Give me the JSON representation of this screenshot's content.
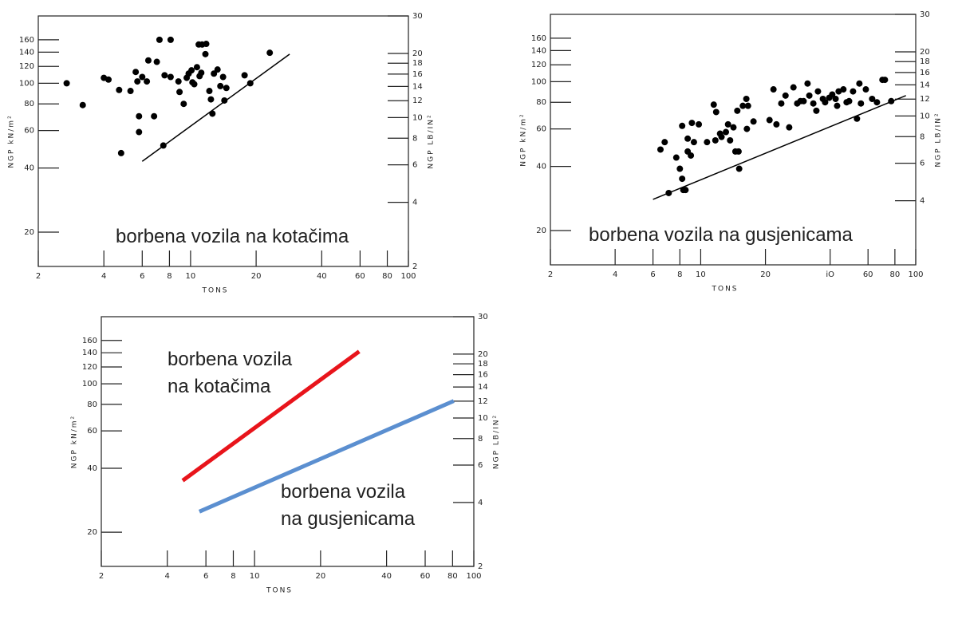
{
  "chart_data": [
    {
      "type": "scatter",
      "annotations": [
        {
          "lines": [
            "borbena vozila na kotačima"
          ],
          "color": "#e8141b"
        }
      ],
      "x_label": "TONS",
      "y_label": "NGP kN/m²",
      "y2_label": "NGP LB/IN²",
      "log_x": true,
      "log_y": true,
      "xlim": [
        2,
        100
      ],
      "xticks": [
        2,
        4,
        6,
        8,
        10,
        20,
        40,
        60,
        80,
        100
      ],
      "ylim": [
        13.8,
        207
      ],
      "yticks": [
        20,
        40,
        60,
        80,
        100,
        120,
        140,
        160
      ],
      "y2lim": [
        2,
        30
      ],
      "y2ticks": [
        2,
        4,
        6,
        8,
        10,
        12,
        14,
        16,
        18,
        20,
        30
      ],
      "series": [
        {
          "color": "#000000",
          "x": [
            2.7,
            3.2,
            4.0,
            4.2,
            4.8,
            4.7,
            5.3,
            5.6,
            5.7,
            6.0,
            5.8,
            5.8,
            6.3,
            6.4,
            6.8,
            7.0,
            7.2,
            7.6,
            7.5,
            8.1,
            8.1,
            8.8,
            8.9,
            9.3,
            9.6,
            9.8,
            10.1,
            10.2,
            10.4,
            10.7,
            11.0,
            11.2,
            10.9,
            11.3,
            11.7,
            11.8,
            12.2,
            12.4,
            12.6,
            12.8,
            13.3,
            14.1,
            14.3,
            13.7,
            14.6,
            17.7,
            18.8,
            23.1
          ],
          "values": [
            100,
            79,
            106,
            104,
            47,
            93,
            92,
            113,
            102,
            107,
            70,
            59,
            102,
            128,
            70,
            126,
            160,
            109,
            51,
            160,
            107,
            102,
            91,
            80,
            106,
            111,
            115,
            101,
            99,
            119,
            108,
            112,
            152,
            152,
            137,
            153,
            92,
            84,
            72,
            111,
            116,
            107,
            83,
            97,
            95,
            109,
            100,
            139
          ]
        }
      ],
      "lines": [
        {
          "color": "#000000",
          "x": [
            6,
            28.5
          ],
          "values": [
            43,
            137
          ]
        }
      ]
    },
    {
      "type": "scatter",
      "annotations": [
        {
          "lines": [
            "borbena vozila na gusjenicama"
          ],
          "color": "#5b8fd0"
        }
      ],
      "x_label": "TONS",
      "y_label": "NGP kN/m²",
      "y2_label": "NGP LB/IN²",
      "log_x": true,
      "log_y": true,
      "xlim": [
        2,
        100
      ],
      "xticks": [
        2,
        4,
        6,
        8,
        10,
        20,
        {
          "value": 40,
          "label": "iO"
        },
        60,
        80,
        100
      ],
      "ylim": [
        13.8,
        207
      ],
      "yticks": [
        20,
        40,
        60,
        80,
        100,
        120,
        140,
        160
      ],
      "y2lim": [
        2,
        30
      ],
      "y2ticks": [
        4,
        6,
        8,
        10,
        12,
        14,
        16,
        18,
        20,
        30
      ],
      "series": [
        {
          "color": "#000000",
          "x": [
            6.5,
            6.8,
            7.1,
            7.7,
            8.0,
            8.2,
            8.3,
            8.5,
            8.2,
            8.7,
            8.7,
            9.0,
            9.1,
            9.8,
            9.3,
            10.7,
            11.7,
            11.5,
            11.8,
            12.3,
            12.5,
            13.1,
            13.4,
            13.7,
            14.2,
            14.5,
            15.0,
            15.1,
            14.8,
            15.7,
            16.3,
            16.6,
            17.6,
            16.4,
            20.9,
            21.8,
            22.5,
            23.7,
            24.8,
            25.8,
            27.0,
            28.1,
            29.1,
            30.1,
            31.4,
            32.0,
            33.4,
            34.5,
            35.1,
            37.0,
            37.9,
            39.6,
            40.9,
            42.4,
            43.8,
            46.1,
            49.0,
            51.1,
            54.7,
            55.6,
            58.6,
            62.7,
            66.0,
            70.0,
            71.9,
            76.9,
            47.7,
            43.1,
            53.3
          ],
          "values": [
            48,
            52,
            30,
            44,
            39,
            35,
            31,
            31,
            62,
            54,
            47,
            45,
            64,
            63,
            52,
            52,
            53,
            78,
            72,
            57,
            55,
            58,
            63,
            53,
            61,
            47,
            47,
            39,
            73,
            77,
            83,
            77,
            65,
            60,
            66,
            92,
            63,
            79,
            86,
            61,
            94,
            79,
            81,
            81,
            98,
            86,
            79,
            73,
            90,
            83,
            80,
            84,
            87,
            83,
            90,
            92,
            81,
            90,
            98,
            79,
            92,
            83,
            80,
            102,
            102,
            81,
            80,
            77,
            67
          ]
        }
      ],
      "lines": [
        {
          "color": "#000000",
          "x": [
            6,
            90
          ],
          "values": [
            28,
            86
          ]
        }
      ]
    },
    {
      "type": "line",
      "annotations": [
        {
          "lines": [
            "borbena vozila",
            "na kotačima"
          ],
          "color": "#e8141b"
        },
        {
          "lines": [
            "borbena vozila",
            "na gusjenicama"
          ],
          "color": "#5b8fd0"
        }
      ],
      "x_label": "TONS",
      "y_label": "NGP kN/m²",
      "y2_label": "NGP LB/IN²",
      "log_x": true,
      "log_y": true,
      "xlim": [
        2,
        100
      ],
      "xticks": [
        2,
        4,
        6,
        8,
        10,
        20,
        40,
        60,
        80,
        100
      ],
      "ylim": [
        13.8,
        207
      ],
      "yticks": [
        20,
        40,
        60,
        80,
        100,
        120,
        140,
        160
      ],
      "y2lim": [
        2,
        30
      ],
      "y2ticks": [
        2,
        4,
        6,
        8,
        10,
        12,
        14,
        16,
        18,
        20,
        30
      ],
      "series": [
        {
          "color": "#e8141b",
          "x": [
            4.7,
            30
          ],
          "values": [
            35,
            142
          ]
        },
        {
          "color": "#5b8fd0",
          "x": [
            5.6,
            81
          ],
          "values": [
            25,
            83
          ]
        }
      ]
    }
  ]
}
